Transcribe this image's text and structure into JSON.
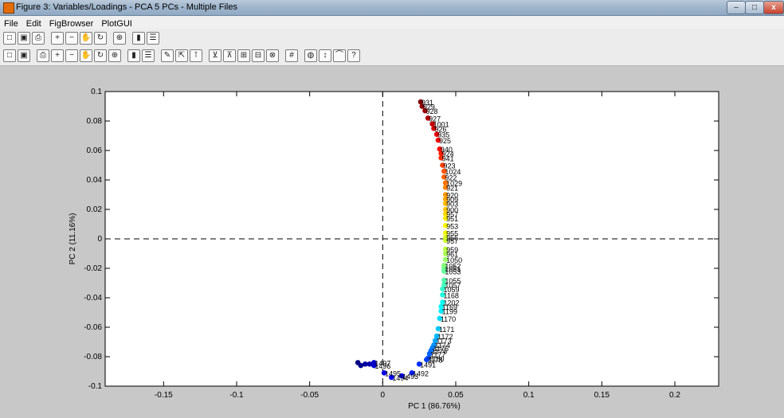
{
  "window": {
    "title": "Figure 3: Variables/Loadings - PCA 5 PCs - Multiple Files"
  },
  "menu": {
    "items": [
      "File",
      "Edit",
      "FigBrowser",
      "PlotGUI"
    ]
  },
  "toolbar1": {
    "icons": [
      "new-icon",
      "save-icon",
      "print-icon",
      "zoom-in-icon",
      "zoom-out-icon",
      "pan-icon",
      "rotate-icon",
      "data-cursor-icon",
      "colorbar-icon",
      "legend-icon"
    ]
  },
  "toolbar2": {
    "icons": [
      "edit-plot-icon",
      "select-icon",
      "label-icon",
      "label-x-icon",
      "label-y-icon",
      "axis-icon",
      "split-icon",
      "class-icon",
      "grid-icon",
      "color-icon",
      "arrow-icon",
      "peak-icon",
      "query-icon",
      "tools-icon",
      "highlight-icon",
      "exclude-icon",
      "include-icon",
      "histogram-icon",
      "down-icon",
      "help-icon",
      "paint-icon",
      "table-icon",
      "spreadsheet-icon"
    ]
  },
  "chart_data": {
    "type": "scatter",
    "xlabel": "PC 1 (86.76%)",
    "ylabel": "PC 2 (11.16%)",
    "xlim": [
      -0.19,
      0.23
    ],
    "ylim": [
      -0.1,
      0.1
    ],
    "xticks": [
      -0.15,
      -0.1,
      -0.05,
      0,
      0.05,
      0.1,
      0.15,
      0.2
    ],
    "yticks": [
      -0.1,
      -0.08,
      -0.06,
      -0.04,
      -0.02,
      0,
      0.02,
      0.04,
      0.06,
      0.08,
      0.1
    ],
    "xtick_labels": [
      "-0.15",
      "-0.1",
      "-0.05",
      "0",
      "0.05",
      "0.1",
      "0.15",
      "0.2"
    ],
    "ytick_labels": [
      "-0.1",
      "-0.08",
      "-0.06",
      "-0.04",
      "-0.02",
      "0",
      "0.02",
      "0.04",
      "0.06",
      "0.08",
      "0.1"
    ],
    "reference_lines": {
      "x": 0,
      "y": 0,
      "style": "dashed"
    },
    "colormap": "jet",
    "points": [
      {
        "x": 0.026,
        "y": 0.093,
        "label": "931"
      },
      {
        "x": 0.027,
        "y": 0.09,
        "label": "929"
      },
      {
        "x": 0.029,
        "y": 0.087,
        "label": "928"
      },
      {
        "x": 0.031,
        "y": 0.082,
        "label": "927"
      },
      {
        "x": 0.034,
        "y": 0.078,
        "label": "1001"
      },
      {
        "x": 0.035,
        "y": 0.075,
        "label": "926"
      },
      {
        "x": 0.037,
        "y": 0.071,
        "label": "935"
      },
      {
        "x": 0.038,
        "y": 0.067,
        "label": "925"
      },
      {
        "x": 0.039,
        "y": 0.061,
        "label": "940"
      },
      {
        "x": 0.04,
        "y": 0.058,
        "label": "924"
      },
      {
        "x": 0.04,
        "y": 0.055,
        "label": "941"
      },
      {
        "x": 0.041,
        "y": 0.05,
        "label": "923"
      },
      {
        "x": 0.042,
        "y": 0.046,
        "label": "1024"
      },
      {
        "x": 0.042,
        "y": 0.042,
        "label": "922"
      },
      {
        "x": 0.043,
        "y": 0.038,
        "label": "1029"
      },
      {
        "x": 0.043,
        "y": 0.035,
        "label": "921"
      },
      {
        "x": 0.043,
        "y": 0.03,
        "label": "920"
      },
      {
        "x": 0.043,
        "y": 0.027,
        "label": "909"
      },
      {
        "x": 0.043,
        "y": 0.024,
        "label": "903"
      },
      {
        "x": 0.043,
        "y": 0.02,
        "label": "900"
      },
      {
        "x": 0.043,
        "y": 0.017,
        "label": "957"
      },
      {
        "x": 0.043,
        "y": 0.014,
        "label": "951"
      },
      {
        "x": 0.043,
        "y": 0.009,
        "label": "953"
      },
      {
        "x": 0.043,
        "y": 0.004,
        "label": "955"
      },
      {
        "x": 0.043,
        "y": 0.001,
        "label": "956"
      },
      {
        "x": 0.043,
        "y": -0.001,
        "label": "957"
      },
      {
        "x": 0.043,
        "y": -0.007,
        "label": "959"
      },
      {
        "x": 0.043,
        "y": -0.01,
        "label": "961"
      },
      {
        "x": 0.043,
        "y": -0.014,
        "label": "1050"
      },
      {
        "x": 0.042,
        "y": -0.018,
        "label": "1052"
      },
      {
        "x": 0.042,
        "y": -0.02,
        "label": "1051"
      },
      {
        "x": 0.042,
        "y": -0.022,
        "label": "1053"
      },
      {
        "x": 0.042,
        "y": -0.028,
        "label": "1055"
      },
      {
        "x": 0.042,
        "y": -0.031,
        "label": "1057"
      },
      {
        "x": 0.041,
        "y": -0.034,
        "label": "1059"
      },
      {
        "x": 0.041,
        "y": -0.038,
        "label": "1168"
      },
      {
        "x": 0.041,
        "y": -0.043,
        "label": "1202"
      },
      {
        "x": 0.04,
        "y": -0.046,
        "label": "1169"
      },
      {
        "x": 0.04,
        "y": -0.049,
        "label": "1199"
      },
      {
        "x": 0.039,
        "y": -0.054,
        "label": "1170"
      },
      {
        "x": 0.038,
        "y": -0.061,
        "label": "1171"
      },
      {
        "x": 0.037,
        "y": -0.066,
        "label": "1172"
      },
      {
        "x": 0.036,
        "y": -0.069,
        "label": "1173"
      },
      {
        "x": 0.035,
        "y": -0.072,
        "label": "1174"
      },
      {
        "x": 0.034,
        "y": -0.074,
        "label": "1175"
      },
      {
        "x": 0.033,
        "y": -0.076,
        "label": "1176"
      },
      {
        "x": 0.032,
        "y": -0.078,
        "label": "1177"
      },
      {
        "x": 0.031,
        "y": -0.081,
        "label": "1180"
      },
      {
        "x": 0.03,
        "y": -0.082,
        "label": "1178"
      },
      {
        "x": 0.025,
        "y": -0.085,
        "label": "1491"
      },
      {
        "x": 0.02,
        "y": -0.091,
        "label": "1492"
      },
      {
        "x": 0.013,
        "y": -0.093,
        "label": "1493"
      },
      {
        "x": 0.006,
        "y": -0.094,
        "label": "1494"
      },
      {
        "x": 0.001,
        "y": -0.091,
        "label": "1495"
      },
      {
        "x": -0.006,
        "y": -0.086,
        "label": "1496"
      },
      {
        "x": -0.006,
        "y": -0.084,
        "label": "1497"
      },
      {
        "x": -0.009,
        "y": -0.085,
        "label": ""
      },
      {
        "x": -0.012,
        "y": -0.085,
        "label": ""
      },
      {
        "x": -0.015,
        "y": -0.086,
        "label": ""
      },
      {
        "x": -0.017,
        "y": -0.084,
        "label": ""
      }
    ]
  }
}
